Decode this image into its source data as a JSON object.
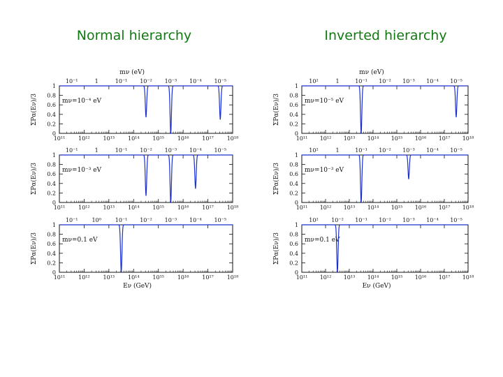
{
  "titles": {
    "left": "Normal hierarchy",
    "right": "Inverted hierarchy"
  },
  "chart_data": [
    {
      "type": "line",
      "column": "Normal hierarchy",
      "row": 0,
      "ylabel": "ΣPα(Eν)/3",
      "top_axis_label": "mν (eV)",
      "xlabel": "",
      "annotation": "mν=10⁻⁴ eV",
      "xscale": "log",
      "xlim": [
        100000000000.0,
        1e+18
      ],
      "ylim": [
        0,
        1
      ],
      "xtick_labels": [
        "10¹¹",
        "10¹²",
        "10¹³",
        "10¹⁴",
        "10¹⁵",
        "10¹⁶",
        "10¹⁷",
        "10¹⁸"
      ],
      "ytick_labels": [
        "0",
        "0.2",
        "0.4",
        "0.6",
        "0.8",
        "1"
      ],
      "top_tick_labels": [
        "10⁻¹",
        "1",
        "10⁻¹",
        "10⁻²",
        "10⁻³",
        "10⁻⁴",
        "10⁻⁵"
      ],
      "dips": [
        {
          "x": 316000000000000.0,
          "min": 0.35
        },
        {
          "x": 3160000000000000.0,
          "min": 0.0
        },
        {
          "x": 3.16e+17,
          "min": 0.3
        }
      ],
      "color": "#1a2fd0"
    },
    {
      "type": "line",
      "column": "Normal hierarchy",
      "row": 1,
      "ylabel": "ΣPα(Eν)/3",
      "top_axis_label": "",
      "xlabel": "",
      "annotation": "mν=10⁻³ eV",
      "xscale": "log",
      "xlim": [
        100000000000.0,
        1e+18
      ],
      "ylim": [
        0,
        1
      ],
      "xtick_labels": [
        "10¹¹",
        "10¹²",
        "10¹³",
        "10¹⁴",
        "10¹⁵",
        "10¹⁶",
        "10¹⁷",
        "10¹⁸"
      ],
      "ytick_labels": [
        "0",
        "0.2",
        "0.4",
        "0.6",
        "0.8",
        "1"
      ],
      "top_tick_labels": [
        "10⁻¹",
        "1",
        "10⁻¹",
        "10⁻²",
        "10⁻³",
        "10⁻⁴",
        "10⁻⁵"
      ],
      "dips": [
        {
          "x": 316000000000000.0,
          "min": 0.15
        },
        {
          "x": 3160000000000000.0,
          "min": 0.0
        },
        {
          "x": 3.16e+16,
          "min": 0.3
        }
      ],
      "color": "#1a2fd0"
    },
    {
      "type": "line",
      "column": "Normal hierarchy",
      "row": 2,
      "ylabel": "ΣPα(Eν)/3",
      "top_axis_label": "",
      "xlabel": "Eν (GeV)",
      "annotation": "mν=0.1 eV",
      "xscale": "log",
      "xlim": [
        100000000000.0,
        1e+18
      ],
      "ylim": [
        0,
        1
      ],
      "xtick_labels": [
        "10¹¹",
        "10¹²",
        "10¹³",
        "10¹⁴",
        "10¹⁵",
        "10¹⁶",
        "10¹⁷",
        "10¹⁸"
      ],
      "ytick_labels": [
        "0",
        "0.2",
        "0.4",
        "0.6",
        "0.8",
        "1"
      ],
      "top_tick_labels": [
        "10⁻¹",
        "10⁰",
        "10⁻¹",
        "10⁻²",
        "10⁻³",
        "10⁻⁴",
        "10⁻⁵"
      ],
      "dips": [
        {
          "x": 31600000000000.0,
          "min": 0.0
        }
      ],
      "color": "#1a2fd0"
    },
    {
      "type": "line",
      "column": "Inverted hierarchy",
      "row": 0,
      "ylabel": "ΣPα(Eν)/3",
      "top_axis_label": "mν (eV)",
      "xlabel": "",
      "annotation": "mν=10⁻⁵ eV",
      "xscale": "log",
      "xlim": [
        100000000000.0,
        1e+18
      ],
      "ylim": [
        0,
        1
      ],
      "xtick_labels": [
        "10¹¹",
        "10¹²",
        "10¹³",
        "10¹⁴",
        "10¹⁵",
        "10¹⁶",
        "10¹⁷",
        "10¹⁸"
      ],
      "ytick_labels": [
        "0",
        "0.2",
        "0.4",
        "0.6",
        "0.8",
        "1"
      ],
      "top_tick_labels": [
        "10²",
        "1",
        "10⁻¹",
        "10⁻²",
        "10⁻³",
        "10⁻⁴",
        "10⁻⁵"
      ],
      "dips": [
        {
          "x": 31600000000000.0,
          "min": 0.0
        },
        {
          "x": 3.16e+17,
          "min": 0.35
        }
      ],
      "color": "#1a2fd0"
    },
    {
      "type": "line",
      "column": "Inverted hierarchy",
      "row": 1,
      "ylabel": "ΣPα(Eν)/3",
      "top_axis_label": "",
      "xlabel": "",
      "annotation": "mν=10⁻³ eV",
      "xscale": "log",
      "xlim": [
        100000000000.0,
        1e+18
      ],
      "ylim": [
        0,
        1
      ],
      "xtick_labels": [
        "10¹¹",
        "10¹²",
        "10¹³",
        "10¹⁴",
        "10¹⁵",
        "10¹⁶",
        "10¹⁷",
        "10¹⁸"
      ],
      "ytick_labels": [
        "0",
        "0.2",
        "0.4",
        "0.6",
        "0.8",
        "1"
      ],
      "top_tick_labels": [
        "10²",
        "1",
        "10⁻¹",
        "10⁻²",
        "10⁻³",
        "10⁻⁴",
        "10⁻⁵"
      ],
      "dips": [
        {
          "x": 31600000000000.0,
          "min": 0.0
        },
        {
          "x": 3160000000000000.0,
          "min": 0.5
        }
      ],
      "color": "#1a2fd0"
    },
    {
      "type": "line",
      "column": "Inverted hierarchy",
      "row": 2,
      "ylabel": "ΣPα(Eν)/3",
      "top_axis_label": "",
      "xlabel": "Eν (GeV)",
      "annotation": "mν=0.1 eV",
      "xscale": "log",
      "xlim": [
        100000000000.0,
        1e+18
      ],
      "ylim": [
        0,
        1
      ],
      "xtick_labels": [
        "10¹¹",
        "10¹²",
        "10¹³",
        "10¹⁴",
        "10¹⁵",
        "10¹⁶",
        "10¹⁷",
        "10¹⁸"
      ],
      "ytick_labels": [
        "0",
        "0.2",
        "0.4",
        "0.6",
        "0.8",
        "1"
      ],
      "top_tick_labels": [
        "10²",
        "10⁻²",
        "10⁻¹",
        "10⁻²",
        "10⁻³",
        "10⁻⁴",
        "10⁻⁵"
      ],
      "dips": [
        {
          "x": 3160000000000.0,
          "min": 0.0
        }
      ],
      "color": "#1a2fd0"
    }
  ]
}
